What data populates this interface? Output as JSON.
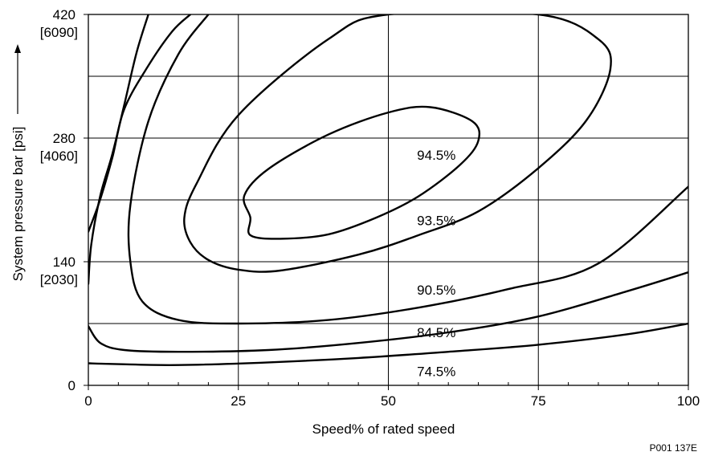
{
  "chart_data": {
    "type": "line",
    "subtype": "efficiency-contour",
    "xlabel": "Speed% of rated speed",
    "ylabel": "System pressure bar [psi]",
    "xlim": [
      0,
      100
    ],
    "ylim": [
      0,
      420
    ],
    "grid": true,
    "x_ticks": [
      {
        "value": 0,
        "label": "0"
      },
      {
        "value": 25,
        "label": "25"
      },
      {
        "value": 50,
        "label": "50"
      },
      {
        "value": 75,
        "label": "75"
      },
      {
        "value": 100,
        "label": "100"
      }
    ],
    "y_ticks": [
      {
        "value": 0,
        "label": "0",
        "sublabel": ""
      },
      {
        "value": 140,
        "label": "140",
        "sublabel": "[2030]"
      },
      {
        "value": 280,
        "label": "280",
        "sublabel": "[4060]"
      },
      {
        "value": 420,
        "label": "420",
        "sublabel": "[6090]"
      }
    ],
    "y_gridlines": [
      70,
      140,
      210,
      280,
      350
    ],
    "series": [
      {
        "name": "94.5%",
        "closed": true,
        "points": [
          [
            27,
            170
          ],
          [
            32,
            166
          ],
          [
            40,
            171
          ],
          [
            48,
            190
          ],
          [
            55,
            214
          ],
          [
            62,
            250
          ],
          [
            65,
            277
          ],
          [
            64,
            299
          ],
          [
            57,
            315
          ],
          [
            50,
            309
          ],
          [
            40,
            284
          ],
          [
            30,
            245
          ],
          [
            26,
            215
          ],
          [
            27,
            190
          ]
        ],
        "label_at": [
          58,
          261
        ]
      },
      {
        "name": "93.5%",
        "closed": true,
        "points": [
          [
            17,
            162
          ],
          [
            20,
            142
          ],
          [
            25,
            131
          ],
          [
            32,
            130
          ],
          [
            45,
            148
          ],
          [
            55,
            170
          ],
          [
            65,
            197
          ],
          [
            75,
            246
          ],
          [
            83,
            300
          ],
          [
            87,
            358
          ],
          [
            85,
            392
          ],
          [
            75,
            420
          ],
          [
            50,
            420
          ],
          [
            40,
            392
          ],
          [
            25,
            306
          ],
          [
            18,
            228
          ],
          [
            16,
            190
          ]
        ],
        "label_at": [
          58,
          187
        ]
      },
      {
        "name": "90.5%",
        "closed": false,
        "points": [
          [
            20,
            420
          ],
          [
            15,
            375
          ],
          [
            10,
            299
          ],
          [
            7,
            204
          ],
          [
            7,
            140
          ],
          [
            9,
            95
          ],
          [
            15,
            74
          ],
          [
            25,
            70
          ],
          [
            40,
            74
          ],
          [
            55,
            88
          ],
          [
            70,
            109
          ],
          [
            85,
            138
          ],
          [
            100,
            225
          ]
        ],
        "label_at": [
          58,
          108
        ]
      },
      {
        "name": "84.5%",
        "closed": false,
        "points": [
          [
            0,
            67
          ],
          [
            2,
            48
          ],
          [
            6,
            40
          ],
          [
            15,
            38
          ],
          [
            30,
            40
          ],
          [
            45,
            48
          ],
          [
            60,
            60
          ],
          [
            75,
            78
          ],
          [
            90,
            107
          ],
          [
            100,
            128
          ]
        ],
        "label_at": [
          58,
          60
        ]
      },
      {
        "name": "74.5%",
        "closed": false,
        "points": [
          [
            0,
            25
          ],
          [
            5,
            24
          ],
          [
            15,
            23
          ],
          [
            30,
            26
          ],
          [
            45,
            31
          ],
          [
            60,
            38
          ],
          [
            75,
            46
          ],
          [
            90,
            58
          ],
          [
            100,
            70
          ]
        ],
        "label_at": [
          58,
          16
        ]
      },
      {
        "name": "",
        "closed": false,
        "points": [
          [
            0,
            115
          ],
          [
            0.5,
            160
          ],
          [
            2,
            215
          ],
          [
            4,
            262
          ],
          [
            6,
            318
          ],
          [
            8,
            376
          ],
          [
            10,
            420
          ]
        ]
      },
      {
        "name": "",
        "closed": false,
        "points": [
          [
            0,
            174
          ],
          [
            2,
            211
          ],
          [
            4,
            258
          ],
          [
            6,
            313
          ],
          [
            10,
            362
          ],
          [
            14,
            401
          ],
          [
            17,
            420
          ]
        ]
      }
    ]
  },
  "figure_code": "P001 137E"
}
